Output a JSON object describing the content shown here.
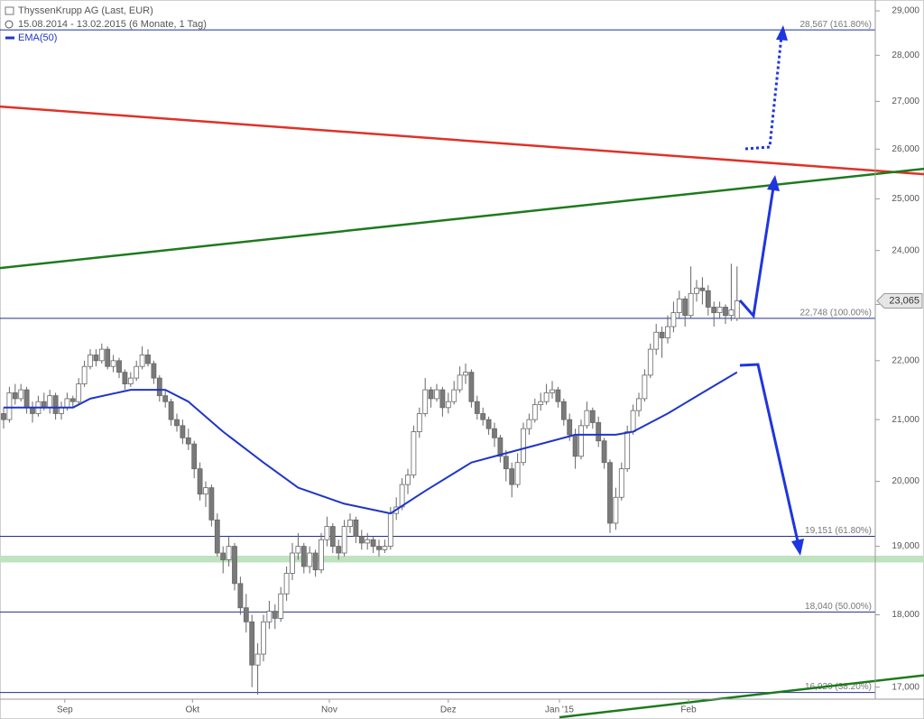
{
  "chart_data": {
    "type": "candlestick",
    "title": "ThyssenKrupp AG (Last, EUR)",
    "subtitle": "15.08.2014 - 13.02.2015 (6 Monate, 1 Tag)",
    "xlim": [
      -0.625,
      159.375
    ],
    "ylim": [
      16.84,
      29.25
    ],
    "log_y": true,
    "xticks": [
      {
        "value": 10.6,
        "label": "Sep"
      },
      {
        "value": 32.7,
        "label": "Okt"
      },
      {
        "value": 56.4,
        "label": "Nov"
      },
      {
        "value": 77,
        "label": "Dez"
      },
      {
        "value": 96.25,
        "label": "Jan '15"
      },
      {
        "value": 118.6,
        "label": "Feb"
      }
    ],
    "yticks": [
      {
        "value": 17,
        "label": "17,000"
      },
      {
        "value": 18,
        "label": "18,000"
      },
      {
        "value": 19,
        "label": "19,000"
      },
      {
        "value": 20,
        "label": "20,000"
      },
      {
        "value": 21,
        "label": "21,000"
      },
      {
        "value": 22,
        "label": "22,000"
      },
      {
        "value": 23,
        "label": "23,000"
      },
      {
        "value": 24,
        "label": "24,000"
      },
      {
        "value": 25,
        "label": "25,000"
      },
      {
        "value": 26,
        "label": "26,000"
      },
      {
        "value": 27,
        "label": "27,000"
      },
      {
        "value": 28,
        "label": "28,000"
      },
      {
        "value": 29,
        "label": "29,000"
      }
    ],
    "up_color": "#ffffff",
    "down_color": "#7a7a7a",
    "wick_color": "#666666",
    "candles": [
      [
        21.1,
        21.2,
        20.85,
        21.0
      ],
      [
        21.0,
        21.55,
        20.95,
        21.45
      ],
      [
        21.45,
        21.6,
        21.25,
        21.35
      ],
      [
        21.35,
        21.6,
        21.3,
        21.5
      ],
      [
        21.5,
        21.55,
        21.1,
        21.2
      ],
      [
        21.2,
        21.3,
        20.95,
        21.1
      ],
      [
        21.1,
        21.4,
        21.05,
        21.3
      ],
      [
        21.3,
        21.45,
        21.15,
        21.2
      ],
      [
        21.2,
        21.5,
        21.1,
        21.4
      ],
      [
        21.4,
        21.45,
        21.0,
        21.1
      ],
      [
        21.1,
        21.3,
        21.0,
        21.2
      ],
      [
        21.2,
        21.45,
        21.15,
        21.35
      ],
      [
        21.35,
        21.4,
        21.2,
        21.3
      ],
      [
        21.3,
        21.7,
        21.25,
        21.6
      ],
      [
        21.6,
        22.0,
        21.55,
        21.9
      ],
      [
        21.9,
        22.2,
        21.85,
        22.1
      ],
      [
        22.1,
        22.2,
        21.9,
        22.0
      ],
      [
        22.0,
        22.3,
        21.95,
        22.2
      ],
      [
        22.2,
        22.25,
        21.85,
        21.9
      ],
      [
        21.9,
        22.1,
        21.8,
        22.0
      ],
      [
        22.0,
        22.05,
        21.7,
        21.8
      ],
      [
        21.8,
        21.85,
        21.5,
        21.6
      ],
      [
        21.6,
        21.8,
        21.55,
        21.7
      ],
      [
        21.7,
        22.0,
        21.65,
        21.9
      ],
      [
        21.9,
        22.25,
        21.85,
        22.1
      ],
      [
        22.1,
        22.2,
        21.9,
        21.95
      ],
      [
        21.95,
        22.0,
        21.6,
        21.7
      ],
      [
        21.7,
        21.75,
        21.3,
        21.4
      ],
      [
        21.4,
        21.5,
        21.2,
        21.3
      ],
      [
        21.3,
        21.35,
        20.9,
        21.0
      ],
      [
        21.0,
        21.1,
        20.8,
        20.9
      ],
      [
        20.9,
        21.0,
        20.6,
        20.7
      ],
      [
        20.7,
        20.85,
        20.5,
        20.6
      ],
      [
        20.6,
        20.65,
        20.05,
        20.2
      ],
      [
        20.2,
        20.3,
        19.7,
        19.8
      ],
      [
        19.8,
        20.0,
        19.6,
        19.9
      ],
      [
        19.9,
        19.95,
        19.3,
        19.4
      ],
      [
        19.4,
        19.5,
        18.85,
        18.9
      ],
      [
        18.9,
        19.0,
        18.6,
        18.8
      ],
      [
        18.8,
        19.15,
        18.7,
        19.0
      ],
      [
        19.0,
        19.05,
        18.35,
        18.45
      ],
      [
        18.45,
        18.55,
        18.0,
        18.1
      ],
      [
        18.1,
        18.3,
        17.75,
        17.9
      ],
      [
        17.9,
        18.0,
        17.0,
        17.3
      ],
      [
        17.3,
        17.6,
        16.9,
        17.45
      ],
      [
        17.45,
        18.0,
        17.35,
        17.9
      ],
      [
        17.9,
        18.2,
        17.8,
        18.05
      ],
      [
        18.05,
        18.15,
        17.8,
        17.95
      ],
      [
        17.95,
        18.4,
        17.9,
        18.3
      ],
      [
        18.3,
        18.7,
        18.2,
        18.6
      ],
      [
        18.6,
        19.05,
        18.5,
        18.9
      ],
      [
        18.9,
        19.2,
        18.8,
        19.0
      ],
      [
        19.0,
        19.05,
        18.6,
        18.7
      ],
      [
        18.7,
        19.0,
        18.6,
        18.9
      ],
      [
        18.9,
        18.95,
        18.55,
        18.65
      ],
      [
        18.65,
        19.2,
        18.6,
        19.1
      ],
      [
        19.1,
        19.45,
        19.0,
        19.3
      ],
      [
        19.3,
        19.35,
        18.9,
        19.0
      ],
      [
        19.0,
        19.1,
        18.8,
        18.9
      ],
      [
        18.9,
        19.4,
        18.85,
        19.3
      ],
      [
        19.3,
        19.5,
        19.2,
        19.4
      ],
      [
        19.4,
        19.45,
        19.05,
        19.15
      ],
      [
        19.15,
        19.25,
        18.95,
        19.05
      ],
      [
        19.05,
        19.2,
        18.95,
        19.1
      ],
      [
        19.1,
        19.15,
        18.9,
        19.0
      ],
      [
        19.0,
        19.1,
        18.85,
        18.95
      ],
      [
        18.95,
        19.1,
        18.9,
        19.0
      ],
      [
        19.0,
        19.6,
        18.95,
        19.5
      ],
      [
        19.5,
        19.75,
        19.4,
        19.6
      ],
      [
        19.6,
        20.05,
        19.55,
        19.95
      ],
      [
        19.95,
        20.2,
        19.8,
        20.1
      ],
      [
        20.1,
        20.9,
        20.05,
        20.8
      ],
      [
        20.8,
        21.2,
        20.7,
        21.1
      ],
      [
        21.1,
        21.7,
        21.05,
        21.5
      ],
      [
        21.5,
        21.55,
        21.2,
        21.35
      ],
      [
        21.35,
        21.6,
        21.3,
        21.5
      ],
      [
        21.5,
        21.55,
        21.05,
        21.2
      ],
      [
        21.2,
        21.45,
        21.1,
        21.3
      ],
      [
        21.3,
        21.65,
        21.25,
        21.5
      ],
      [
        21.5,
        21.9,
        21.45,
        21.75
      ],
      [
        21.75,
        21.95,
        21.6,
        21.8
      ],
      [
        21.8,
        21.85,
        21.2,
        21.3
      ],
      [
        21.3,
        21.4,
        21.0,
        21.1
      ],
      [
        21.1,
        21.2,
        20.9,
        21.0
      ],
      [
        21.0,
        21.05,
        20.75,
        20.85
      ],
      [
        20.85,
        20.95,
        20.55,
        20.7
      ],
      [
        20.7,
        20.75,
        20.3,
        20.4
      ],
      [
        20.4,
        20.5,
        20.0,
        20.2
      ],
      [
        20.2,
        20.3,
        19.75,
        19.95
      ],
      [
        19.95,
        20.45,
        19.9,
        20.3
      ],
      [
        20.3,
        20.95,
        20.25,
        20.85
      ],
      [
        20.85,
        21.1,
        20.75,
        21.0
      ],
      [
        21.0,
        21.35,
        20.95,
        21.25
      ],
      [
        21.25,
        21.45,
        21.15,
        21.3
      ],
      [
        21.3,
        21.6,
        21.25,
        21.45
      ],
      [
        21.45,
        21.65,
        21.35,
        21.5
      ],
      [
        21.5,
        21.55,
        21.2,
        21.3
      ],
      [
        21.3,
        21.35,
        20.9,
        21.0
      ],
      [
        21.0,
        21.1,
        20.65,
        20.75
      ],
      [
        20.75,
        20.85,
        20.2,
        20.4
      ],
      [
        20.4,
        21.0,
        20.35,
        20.9
      ],
      [
        20.9,
        21.3,
        20.85,
        21.15
      ],
      [
        21.15,
        21.2,
        20.85,
        20.95
      ],
      [
        20.95,
        21.05,
        20.55,
        20.65
      ],
      [
        20.65,
        20.7,
        20.2,
        20.3
      ],
      [
        20.3,
        20.35,
        19.2,
        19.35
      ],
      [
        19.35,
        19.9,
        19.25,
        19.75
      ],
      [
        19.75,
        20.3,
        19.7,
        20.2
      ],
      [
        20.2,
        20.9,
        20.15,
        20.8
      ],
      [
        20.8,
        21.25,
        20.75,
        21.15
      ],
      [
        21.15,
        21.45,
        21.05,
        21.35
      ],
      [
        21.35,
        21.85,
        21.3,
        21.75
      ],
      [
        21.75,
        22.3,
        21.7,
        22.2
      ],
      [
        22.2,
        22.65,
        22.1,
        22.5
      ],
      [
        22.5,
        22.6,
        22.05,
        22.4
      ],
      [
        22.4,
        22.8,
        22.3,
        22.6
      ],
      [
        22.6,
        23.05,
        22.5,
        22.85
      ],
      [
        22.85,
        23.25,
        22.75,
        23.1
      ],
      [
        23.1,
        23.15,
        22.6,
        22.8
      ],
      [
        22.8,
        23.7,
        22.75,
        23.2
      ],
      [
        23.2,
        23.45,
        23.05,
        23.3
      ],
      [
        23.3,
        23.5,
        23.0,
        23.25
      ],
      [
        23.25,
        23.35,
        22.8,
        22.95
      ],
      [
        22.95,
        23.05,
        22.6,
        22.85
      ],
      [
        22.85,
        23.05,
        22.75,
        22.95
      ],
      [
        22.95,
        23.0,
        22.65,
        22.8
      ],
      [
        22.8,
        23.75,
        22.7,
        22.9
      ],
      [
        22.75,
        23.7,
        22.7,
        23.065
      ]
    ],
    "ema": {
      "name": "EMA(50)",
      "color": "#1f35c8",
      "x": [
        0,
        12,
        15,
        22,
        28,
        32,
        38,
        45,
        51,
        59,
        67,
        73,
        81,
        87,
        93,
        99,
        106,
        109,
        115,
        121,
        127
      ],
      "values": [
        21.2,
        21.2,
        21.35,
        21.5,
        21.5,
        21.3,
        20.8,
        20.3,
        19.9,
        19.65,
        19.5,
        19.85,
        20.3,
        20.45,
        20.6,
        20.75,
        20.75,
        20.8,
        21.1,
        21.45,
        21.8
      ]
    },
    "levels": [
      {
        "value": 28.567,
        "label": "28,567 (161.80%)"
      },
      {
        "value": 22.748,
        "label": "22,748 (100.00%)"
      },
      {
        "value": 19.151,
        "label": "19,151 (61.80%)"
      },
      {
        "value": 18.04,
        "label": "18,040 (50.00%)"
      },
      {
        "value": 16.929,
        "label": "16,929 (38.20%)"
      }
    ],
    "level_color": "#23318a",
    "zone": {
      "range": [
        18.76,
        18.86
      ],
      "color": "#bfe3bf"
    },
    "trendlines": [
      {
        "x": [
          -0.625,
          159.375
        ],
        "values": [
          26.89,
          25.49
        ],
        "color": "#e03127"
      },
      {
        "x": [
          -0.625,
          159.375
        ],
        "values": [
          23.67,
          25.6
        ],
        "color": "#1e7a1e"
      },
      {
        "x": [
          96.25,
          159.375
        ],
        "values": [
          16.6,
          17.16
        ],
        "color": "#1e7a1e"
      }
    ],
    "last_price": {
      "value": 23.065,
      "label": "23,065"
    }
  }
}
